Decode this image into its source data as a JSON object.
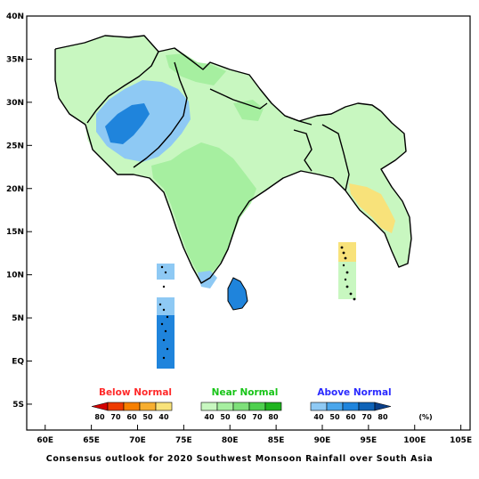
{
  "title": "",
  "caption": "Consensus outlook for 2020 Southwest Monsoon Rainfall over South Asia",
  "axes": {
    "x_ticks": [
      "60E",
      "65E",
      "70E",
      "75E",
      "80E",
      "85E",
      "90E",
      "95E",
      "100E",
      "105E"
    ],
    "y_ticks": [
      "40N",
      "35N",
      "30N",
      "25N",
      "20N",
      "15N",
      "10N",
      "5N",
      "EQ",
      "5S"
    ],
    "x_range_deg": [
      58,
      106
    ],
    "y_range_deg": [
      -8,
      40
    ]
  },
  "legend": {
    "unit": "(%)",
    "categories": [
      {
        "label": "Below Normal",
        "color": "#ff2a2a",
        "bins": [
          "80",
          "70",
          "60",
          "50",
          "40"
        ],
        "swatches": [
          "#d40000",
          "#ee3a00",
          "#f77f00",
          "#f7ae30",
          "#f8e27a"
        ]
      },
      {
        "label": "Near Normal",
        "color": "#16c416",
        "bins": [
          "40",
          "50",
          "60",
          "70",
          "80"
        ],
        "swatches": [
          "#c8f7c0",
          "#a6efa0",
          "#7ee07a",
          "#4ed04e",
          "#1fb41f"
        ]
      },
      {
        "label": "Above Normal",
        "color": "#2a2aff",
        "bins": [
          "40",
          "50",
          "60",
          "70",
          "80"
        ],
        "swatches": [
          "#8ec9f4",
          "#4aa6ec",
          "#1f84dc",
          "#0f63b8",
          "#0a3f88"
        ]
      }
    ]
  },
  "region_colors": {
    "near_normal_light": "#c8f7c0",
    "near_normal_mid": "#a6efa0",
    "above_normal_light": "#8ec9f4",
    "above_normal_mid": "#4aa6ec",
    "above_normal_strong": "#1f84dc",
    "below_normal_light": "#f8e27a"
  }
}
